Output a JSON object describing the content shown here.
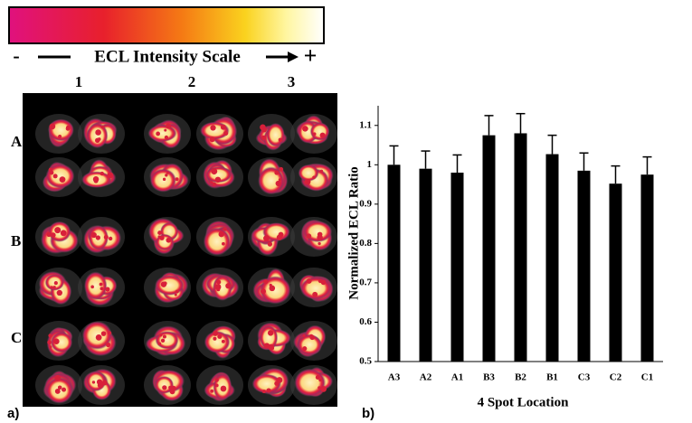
{
  "panel_a": {
    "scale_label": "ECL Intensity Scale",
    "minus": "-",
    "plus": "+",
    "columns": [
      "1",
      "2",
      "3"
    ],
    "rows": [
      "A",
      "B",
      "C"
    ],
    "panel_label": "a)"
  },
  "chart_data": {
    "type": "bar",
    "panel_label": "b)",
    "ylabel": "Normalized ECL Ratio",
    "xlabel": "4 Spot Location",
    "categories": [
      "A3",
      "A2",
      "A1",
      "B3",
      "B2",
      "B1",
      "C3",
      "C2",
      "C1"
    ],
    "values": [
      1.0,
      0.99,
      0.98,
      1.075,
      1.08,
      1.027,
      0.985,
      0.952,
      0.975
    ],
    "errors": [
      0.048,
      0.045,
      0.045,
      0.05,
      0.05,
      0.048,
      0.045,
      0.045,
      0.045
    ],
    "color": "#000000",
    "ylim": [
      0.5,
      1.15
    ],
    "yticks": [
      0.5,
      0.6,
      0.7,
      0.8,
      0.9,
      1,
      1.1
    ]
  }
}
